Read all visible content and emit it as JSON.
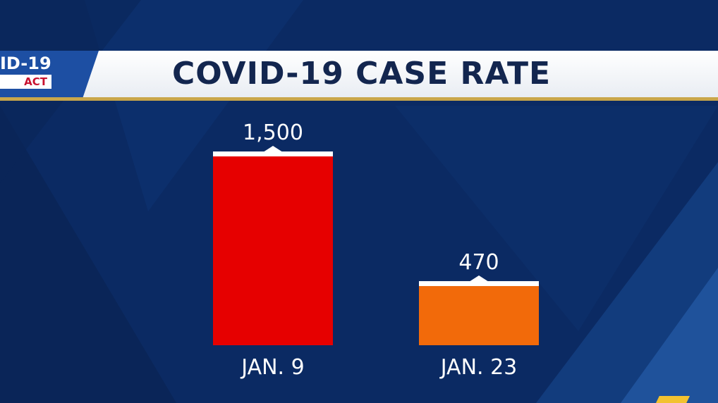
{
  "banner": {
    "tag_top": "ID-19",
    "tag_bottom": "ACT",
    "title": "COVID-19 CASE RATE"
  },
  "colors": {
    "background": "#0b2a63",
    "bar_1": "#e60000",
    "bar_2": "#f26a0a",
    "cap": "#ffffff",
    "title_text": "#13264f"
  },
  "chart_data": {
    "type": "bar",
    "categories": [
      "JAN. 9",
      "JAN. 23"
    ],
    "values": [
      1500,
      470
    ],
    "value_labels": [
      "1,500",
      "470"
    ],
    "title": "COVID-19 CASE RATE",
    "xlabel": "",
    "ylabel": "",
    "ylim": [
      0,
      1500
    ],
    "grid": false,
    "legend": "none"
  }
}
